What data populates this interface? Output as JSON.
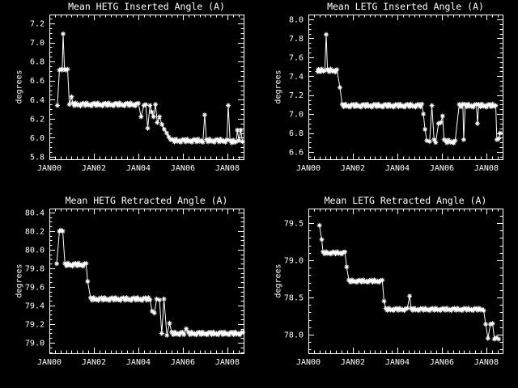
{
  "window": {
    "background_color": "#000000",
    "foreground_color": "#ffffff",
    "description": "2x2 grid of IDL-style trend plots of Chandra grating angles"
  },
  "chart_data": [
    {
      "id": "hetg-inserted",
      "type": "line",
      "marker": "asterisk",
      "title": "Mean HETG Inserted Angle (A)",
      "ylabel": "degrees",
      "legend": "none",
      "grid": false,
      "x_range": [
        2000.0,
        2008.73
      ],
      "y_range": [
        5.775,
        7.293
      ],
      "x_ticks": {
        "labels": [
          "JAN00",
          "JAN02",
          "JAN04",
          "JAN06",
          "JAN08"
        ],
        "values": [
          2000,
          2002,
          2004,
          2006,
          2008
        ],
        "minor_step": 0.25
      },
      "y_ticks": {
        "labels": [
          "5.8",
          "6.0",
          "6.2",
          "6.4",
          "6.6",
          "6.8",
          "7.0",
          "7.2"
        ],
        "values": [
          5.8,
          6.0,
          6.2,
          6.4,
          6.6,
          6.8,
          7.0,
          7.2
        ],
        "minor_step": 0.05
      },
      "series": {
        "name": "mean inserted angle",
        "path": [
          [
            "p",
            2000.36,
            6.34
          ],
          [
            "p",
            2000.45,
            6.71
          ],
          [
            "p",
            2000.52,
            6.72
          ],
          [
            "p",
            2000.58,
            6.71
          ],
          [
            "p",
            2000.62,
            7.09
          ],
          [
            "p",
            2000.68,
            6.72
          ],
          [
            "p",
            2000.75,
            6.71
          ],
          [
            "p",
            2000.82,
            6.72
          ],
          [
            "p",
            2000.9,
            6.35
          ],
          [
            "p",
            2001.0,
            6.43
          ],
          [
            "f",
            2001.05,
            2004.0,
            6.35
          ],
          [
            "p",
            2004.12,
            6.22
          ],
          [
            "p",
            2004.25,
            6.34
          ],
          [
            "p",
            2004.33,
            6.35
          ],
          [
            "p",
            2004.42,
            6.1
          ],
          [
            "p",
            2004.52,
            6.34
          ],
          [
            "p",
            2004.6,
            6.27
          ],
          [
            "p",
            2004.68,
            6.22
          ],
          [
            "p",
            2004.77,
            6.35
          ],
          [
            "p",
            2004.85,
            6.16
          ],
          [
            "p",
            2004.95,
            6.22
          ],
          [
            "p",
            2005.06,
            6.14
          ],
          [
            "p",
            2005.16,
            6.09
          ],
          [
            "p",
            2005.27,
            6.05
          ],
          [
            "p",
            2005.36,
            6.01
          ],
          [
            "p",
            2005.45,
            5.98
          ],
          [
            "f",
            2005.55,
            2006.9,
            5.97
          ],
          [
            "p",
            2006.98,
            6.24
          ],
          [
            "f",
            2007.06,
            2007.98,
            5.97
          ],
          [
            "p",
            2008.04,
            6.34
          ],
          [
            "f",
            2008.12,
            2008.4,
            5.96
          ],
          [
            "p",
            2008.45,
            6.08
          ],
          [
            "p",
            2008.52,
            5.97
          ],
          [
            "p",
            2008.6,
            6.08
          ],
          [
            "p",
            2008.68,
            5.96
          ]
        ]
      }
    },
    {
      "id": "letg-inserted",
      "type": "line",
      "marker": "asterisk",
      "title": "Mean LETG Inserted Angle (A)",
      "ylabel": "degrees",
      "legend": "none",
      "grid": false,
      "x_range": [
        2000.0,
        2008.73
      ],
      "y_range": [
        6.523,
        8.051
      ],
      "x_ticks": {
        "labels": [
          "JAN00",
          "JAN02",
          "JAN04",
          "JAN06",
          "JAN08"
        ],
        "values": [
          2000,
          2002,
          2004,
          2006,
          2008
        ],
        "minor_step": 0.25
      },
      "y_ticks": {
        "labels": [
          "6.6",
          "6.8",
          "7.0",
          "7.2",
          "7.4",
          "7.6",
          "7.8",
          "8.0"
        ],
        "values": [
          6.6,
          6.8,
          7.0,
          7.2,
          7.4,
          7.6,
          7.8,
          8.0
        ],
        "minor_step": 0.05
      },
      "series": {
        "name": "mean inserted angle",
        "path": [
          [
            "p",
            2000.42,
            7.45
          ],
          [
            "f",
            2000.45,
            2000.74,
            7.46
          ],
          [
            "p",
            2000.8,
            7.84
          ],
          [
            "f",
            2000.86,
            2001.28,
            7.46
          ],
          [
            "p",
            2001.42,
            7.28
          ],
          [
            "f",
            2001.52,
            2005.1,
            7.09
          ],
          [
            "p",
            2005.17,
            7.0
          ],
          [
            "p",
            2005.24,
            6.84
          ],
          [
            "p",
            2005.32,
            6.72
          ],
          [
            "p",
            2005.45,
            6.71
          ],
          [
            "p",
            2005.55,
            7.09
          ],
          [
            "p",
            2005.65,
            6.73
          ],
          [
            "p",
            2005.72,
            6.7
          ],
          [
            "p",
            2005.85,
            6.9
          ],
          [
            "p",
            2005.95,
            6.91
          ],
          [
            "p",
            2006.03,
            6.98
          ],
          [
            "p",
            2006.1,
            6.73
          ],
          [
            "f",
            2006.15,
            2006.6,
            6.71
          ],
          [
            "f",
            2006.78,
            2006.94,
            7.09
          ],
          [
            "p",
            2006.98,
            6.73
          ],
          [
            "f",
            2007.05,
            2007.55,
            7.09
          ],
          [
            "p",
            2007.6,
            6.9
          ],
          [
            "f",
            2007.66,
            2008.42,
            7.09
          ],
          [
            "p",
            2008.47,
            6.73
          ],
          [
            "p",
            2008.55,
            6.74
          ],
          [
            "p",
            2008.62,
            6.8
          ]
        ]
      }
    },
    {
      "id": "hetg-retracted",
      "type": "line",
      "marker": "asterisk",
      "title": "Mean HETG Retracted Angle (A)",
      "ylabel": "degrees",
      "legend": "none",
      "grid": false,
      "x_range": [
        2000.0,
        2008.73
      ],
      "y_range": [
        78.887,
        80.443
      ],
      "x_ticks": {
        "labels": [
          "JAN00",
          "JAN02",
          "JAN04",
          "JAN06",
          "JAN08"
        ],
        "values": [
          2000,
          2002,
          2004,
          2006,
          2008
        ],
        "minor_step": 0.25
      },
      "y_ticks": {
        "labels": [
          "79.0",
          "79.2",
          "79.4",
          "79.6",
          "79.8",
          "80.0",
          "80.2",
          "80.4"
        ],
        "values": [
          79.0,
          79.2,
          79.4,
          79.6,
          79.8,
          80.0,
          80.2,
          80.4
        ],
        "minor_step": 0.05
      },
      "series": {
        "name": "mean retracted angle",
        "path": [
          [
            "p",
            2000.33,
            79.85
          ],
          [
            "p",
            2000.45,
            80.2
          ],
          [
            "p",
            2000.52,
            80.21
          ],
          [
            "p",
            2000.6,
            80.2
          ],
          [
            "f",
            2000.7,
            2001.65,
            79.84
          ],
          [
            "p",
            2001.72,
            79.66
          ],
          [
            "f",
            2001.85,
            2004.52,
            79.47
          ],
          [
            "p",
            2004.62,
            79.34
          ],
          [
            "p",
            2004.72,
            79.32
          ],
          [
            "p",
            2004.82,
            79.47
          ],
          [
            "p",
            2004.95,
            79.46
          ],
          [
            "p",
            2005.05,
            79.1
          ],
          [
            "p",
            2005.15,
            79.47
          ],
          [
            "p",
            2005.28,
            79.08
          ],
          [
            "p",
            2005.4,
            79.21
          ],
          [
            "f",
            2005.5,
            2006.05,
            79.1
          ],
          [
            "p",
            2006.15,
            79.15
          ],
          [
            "f",
            2006.25,
            2008.7,
            79.1
          ]
        ]
      }
    },
    {
      "id": "letg-retracted",
      "type": "line",
      "marker": "asterisk",
      "title": "Mean LETG Retracted Angle (A)",
      "ylabel": "degrees",
      "legend": "none",
      "grid": false,
      "x_range": [
        2000.0,
        2008.73
      ],
      "y_range": [
        77.75,
        79.696
      ],
      "x_ticks": {
        "labels": [
          "JAN00",
          "JAN02",
          "JAN04",
          "JAN06",
          "JAN08"
        ],
        "values": [
          2000,
          2002,
          2004,
          2006,
          2008
        ],
        "minor_step": 0.25
      },
      "y_ticks": {
        "labels": [
          "78.0",
          "78.5",
          "79.0",
          "79.5"
        ],
        "values": [
          78.0,
          78.5,
          79.0,
          79.5
        ],
        "minor_step": 0.1
      },
      "series": {
        "name": "mean retracted angle",
        "path": [
          [
            "p",
            2000.5,
            79.47
          ],
          [
            "p",
            2000.6,
            79.28
          ],
          [
            "f",
            2000.66,
            2001.64,
            79.1
          ],
          [
            "p",
            2001.72,
            78.91
          ],
          [
            "f",
            2001.82,
            2003.32,
            78.72
          ],
          [
            "p",
            2003.4,
            78.45
          ],
          [
            "f",
            2003.48,
            2004.45,
            78.34
          ],
          [
            "p",
            2004.55,
            78.52
          ],
          [
            "f",
            2004.62,
            2007.88,
            78.34
          ],
          [
            "p",
            2007.97,
            78.14
          ],
          [
            "p",
            2008.07,
            77.95
          ],
          [
            "p",
            2008.18,
            78.14
          ],
          [
            "p",
            2008.28,
            78.15
          ],
          [
            "p",
            2008.36,
            77.94
          ],
          [
            "p",
            2008.45,
            77.96
          ],
          [
            "p",
            2008.55,
            77.94
          ]
        ]
      }
    }
  ]
}
